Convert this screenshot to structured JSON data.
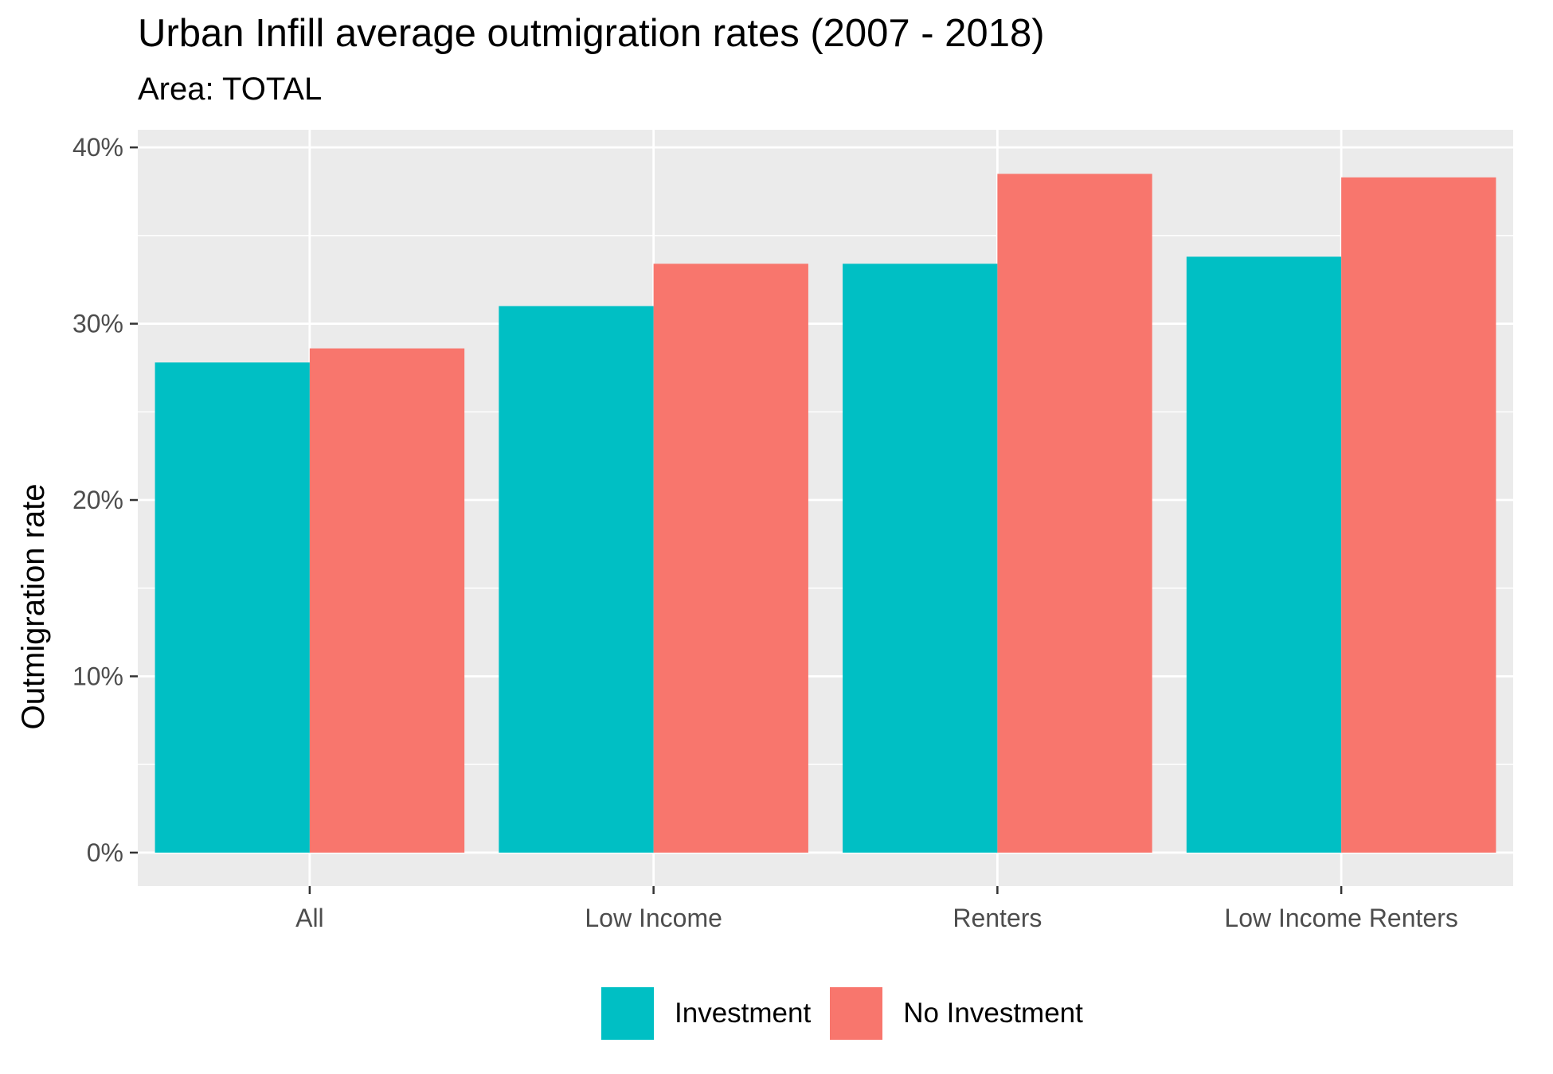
{
  "chart_data": {
    "type": "bar",
    "title": "Urban Infill average outmigration rates (2007 - 2018)",
    "subtitle": "Area: TOTAL",
    "xlabel": "",
    "ylabel": "Outmigration rate",
    "categories": [
      "All",
      "Low Income",
      "Renters",
      "Low Income Renters"
    ],
    "series": [
      {
        "name": "Investment",
        "color": "#00BFC4",
        "values": [
          27.8,
          31.0,
          33.4,
          33.8
        ]
      },
      {
        "name": "No Investment",
        "color": "#F8766D",
        "values": [
          28.6,
          33.4,
          38.5,
          38.3
        ]
      }
    ],
    "ylim": [
      -1.9,
      41
    ],
    "yticks": [
      0,
      10,
      20,
      30,
      40
    ],
    "ytick_labels": [
      "0%",
      "10%",
      "20%",
      "30%",
      "40%"
    ],
    "grid": true,
    "legend_position": "bottom",
    "panel_background": "#EBEBEB"
  }
}
